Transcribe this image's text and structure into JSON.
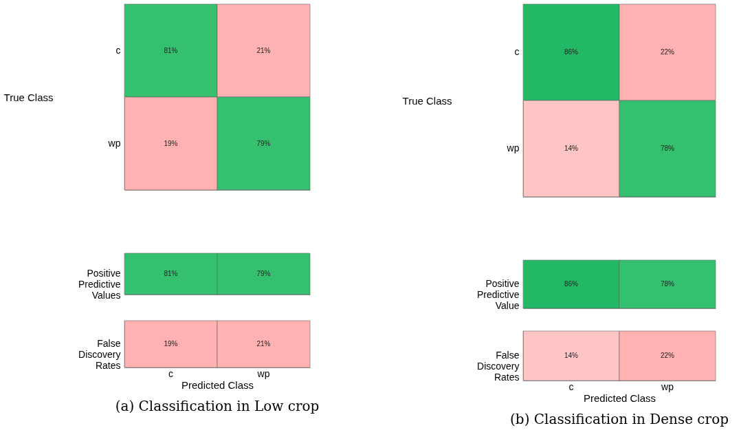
{
  "chart_data": [
    {
      "type": "heatmap",
      "ylabel": "True Class",
      "categories": [
        null,
        null
      ],
      "y_categories": [
        "c",
        "wp"
      ],
      "tick_labels": "y",
      "cells": [
        [
          81,
          21
        ],
        [
          19,
          79
        ]
      ],
      "cell_labels": [
        [
          "81%",
          "21%"
        ],
        [
          "19%",
          "79%"
        ]
      ]
    },
    {
      "type": "heatmap",
      "ylabel": "True Class",
      "categories": [
        null,
        null
      ],
      "y_categories": [
        "c",
        "wp"
      ],
      "tick_labels": "y",
      "cells": [
        [
          86,
          22
        ],
        [
          14,
          78
        ]
      ],
      "cell_labels": [
        [
          "86%",
          "22%"
        ],
        [
          "14%",
          "78%"
        ]
      ]
    },
    {
      "type": "heatmap",
      "categories": [
        null,
        null
      ],
      "y_categories": [
        "Positive Predictive Values"
      ],
      "tick_labels": "y",
      "cells": [
        [
          81,
          79
        ]
      ],
      "cell_labels": [
        [
          "81%",
          "79%"
        ]
      ]
    },
    {
      "type": "heatmap",
      "categories": [
        null,
        null
      ],
      "y_categories": [
        "Positive Predictive Value"
      ],
      "tick_labels": "y",
      "cells": [
        [
          86,
          78
        ]
      ],
      "cell_labels": [
        [
          "86%",
          "78%"
        ]
      ]
    },
    {
      "type": "heatmap",
      "xlabel": "Predicted Class",
      "categories": [
        "c",
        "wp"
      ],
      "y_categories": [
        "False Discovery Rates"
      ],
      "cells": [
        [
          19,
          21
        ]
      ],
      "cell_labels": [
        [
          "19%",
          "21%"
        ]
      ],
      "annotations": [
        "(a) Classification in Low crop"
      ]
    },
    {
      "type": "heatmap",
      "xlabel": "Predicted Class",
      "categories": [
        "c",
        "wp"
      ],
      "y_categories": [
        "False Discovery Rates"
      ],
      "cells": [
        [
          14,
          22
        ]
      ],
      "cell_labels": [
        [
          "14%",
          "22%"
        ]
      ],
      "annotations": [
        "(b) Classification in Dense crop"
      ]
    }
  ]
}
